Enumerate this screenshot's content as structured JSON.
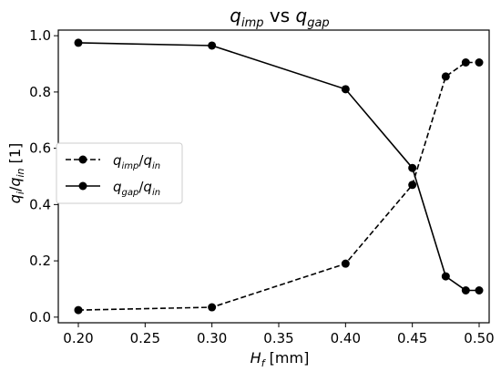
{
  "chart_data": {
    "type": "line",
    "title": {
      "var": "q",
      "sub1": "imp",
      "mid": " vs ",
      "var2": "q",
      "sub2": "gap"
    },
    "xlabel": {
      "var": "H",
      "sub": "f",
      "unit": " [mm]"
    },
    "ylabel": {
      "a": "q",
      "a_sub": "i",
      "slash": "/",
      "b": "q",
      "b_sub": "in",
      "unit": " [1]"
    },
    "xlim": [
      0.185,
      0.5075
    ],
    "ylim": [
      -0.02,
      1.02
    ],
    "xticks": [
      0.2,
      0.25,
      0.3,
      0.35,
      0.4,
      0.45,
      0.5
    ],
    "xtick_labels": [
      "0.20",
      "0.25",
      "0.30",
      "0.35",
      "0.40",
      "0.45",
      "0.50"
    ],
    "yticks": [
      0.0,
      0.2,
      0.4,
      0.6,
      0.8,
      1.0
    ],
    "ytick_labels": [
      "0.0",
      "0.2",
      "0.4",
      "0.6",
      "0.8",
      "1.0"
    ],
    "grid": false,
    "legend_position": "center-left",
    "x": [
      0.2,
      0.3,
      0.4,
      0.45,
      0.475,
      0.49,
      0.5
    ],
    "series": [
      {
        "label": {
          "a": "q",
          "a_sub": "imp",
          "slash": "/",
          "b": "q",
          "b_sub": "in"
        },
        "style": "dashed",
        "marker": "circle",
        "color": "#000000",
        "values": [
          0.025,
          0.035,
          0.19,
          0.47,
          0.855,
          0.905,
          0.905
        ]
      },
      {
        "label": {
          "a": "q",
          "a_sub": "gap",
          "slash": "/",
          "b": "q",
          "b_sub": "in"
        },
        "style": "solid",
        "marker": "circle",
        "color": "#000000",
        "values": [
          0.975,
          0.965,
          0.81,
          0.53,
          0.145,
          0.095,
          0.095
        ]
      }
    ]
  }
}
